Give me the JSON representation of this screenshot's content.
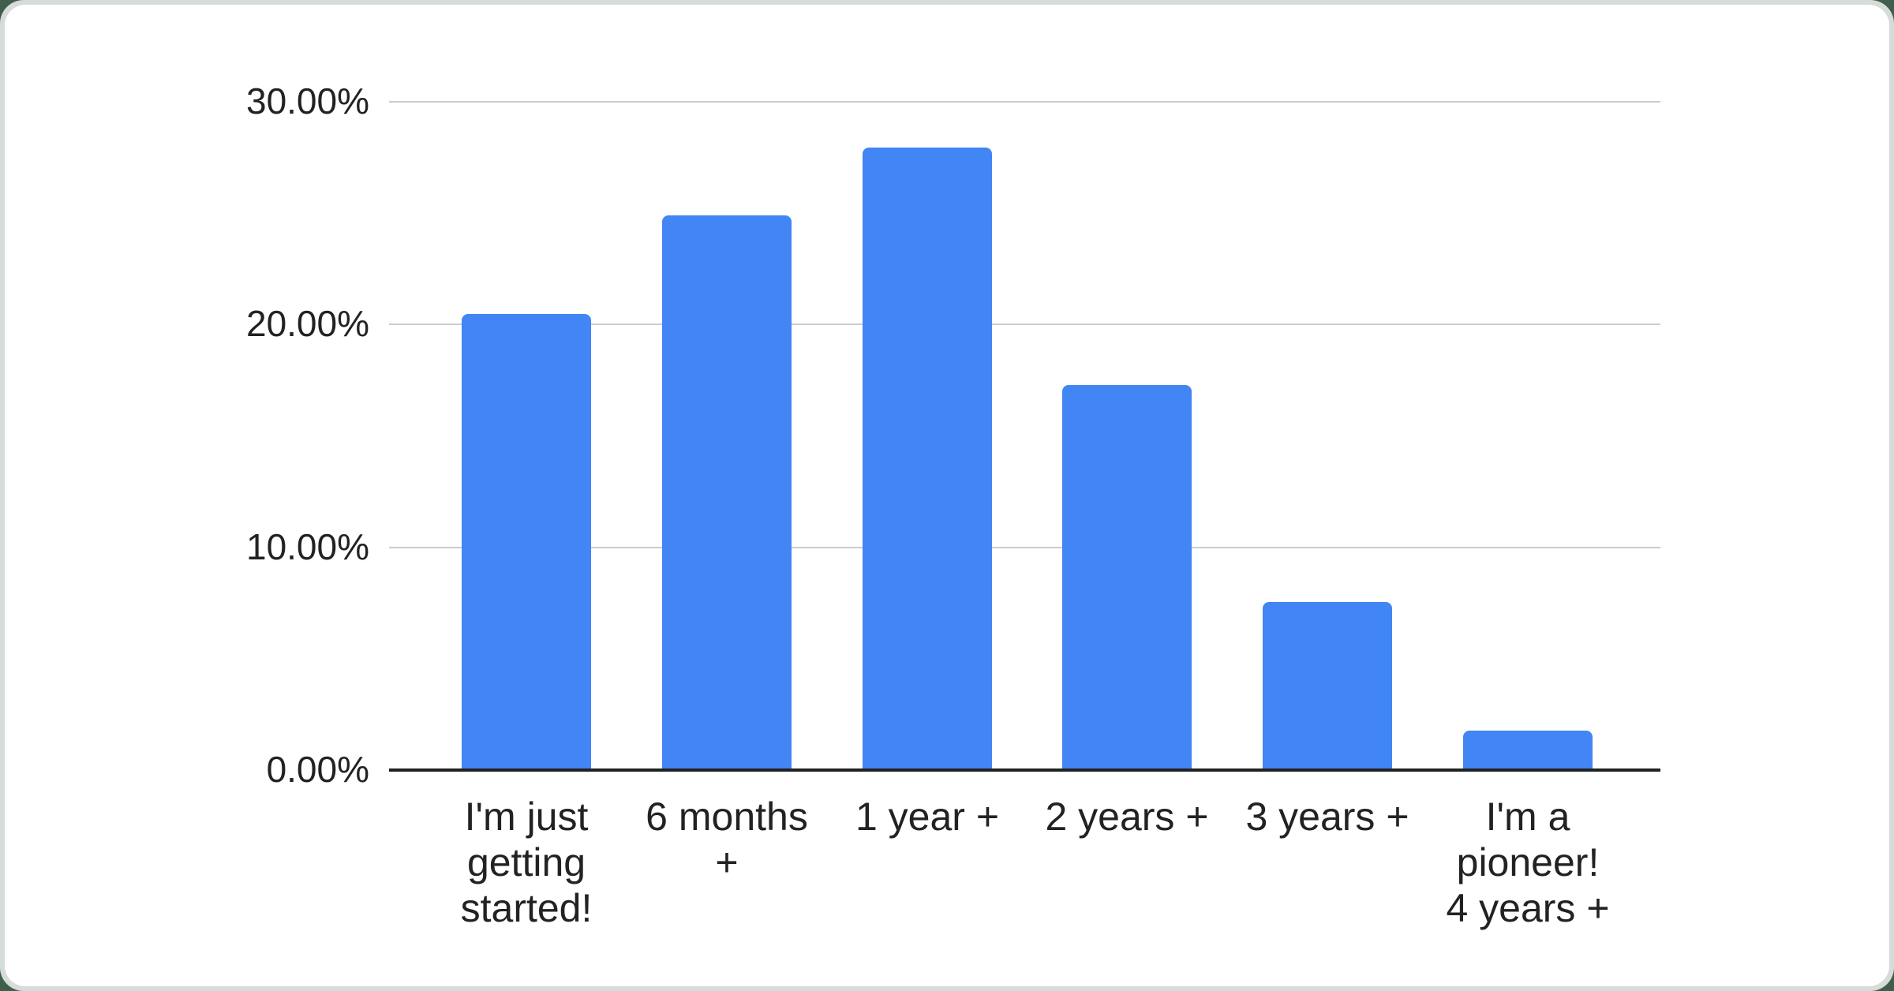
{
  "chart_data": {
    "type": "bar",
    "title": "",
    "xlabel": "",
    "ylabel": "",
    "categories": [
      "I'm just getting started!",
      "6 months +",
      "1 year +",
      "2 years +",
      "3 years +",
      "I'm a pioneer! 4 years +"
    ],
    "values": [
      20.45,
      24.85,
      27.9,
      17.25,
      7.5,
      1.75
    ],
    "category_display_lines": [
      [
        "I'm just",
        "getting",
        "started!"
      ],
      [
        "6 months",
        "+"
      ],
      [
        "1 year +"
      ],
      [
        "2 years +"
      ],
      [
        "3 years +"
      ],
      [
        "I'm a",
        "pioneer!",
        "4 years +"
      ]
    ],
    "y_ticks": [
      "30.00%",
      "20.00%",
      "10.00%",
      "0.00%"
    ],
    "y_tick_values": [
      30,
      20,
      10,
      0
    ],
    "ylim": [
      0,
      30
    ],
    "grid": true,
    "legend_position": "none",
    "bar_color": "#4285f4",
    "gridline_color": "#cccccc",
    "axis_line_color": "#212121",
    "label_color": "#222222",
    "card_background": "#ffffff",
    "frame_background": "#d6dcd9"
  }
}
